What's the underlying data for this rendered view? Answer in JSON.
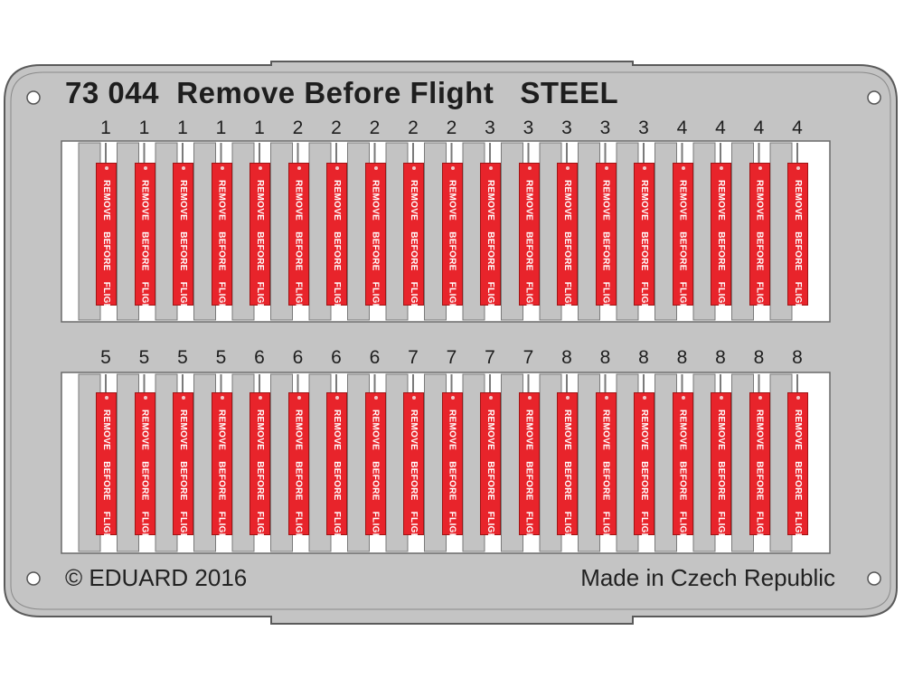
{
  "fret": {
    "title": "73 044  Remove Before Flight   STEEL",
    "copyright": "© EDUARD 2016",
    "origin": "Made in Czech Republic"
  },
  "tag_text": "REMOVE BEFORE FLIGHT",
  "top_row_numbers": [
    "1",
    "1",
    "1",
    "1",
    "1",
    "2",
    "2",
    "2",
    "2",
    "2",
    "3",
    "3",
    "3",
    "3",
    "3",
    "4",
    "4",
    "4",
    "4"
  ],
  "bottom_row_numbers": [
    "5",
    "5",
    "5",
    "5",
    "6",
    "6",
    "6",
    "6",
    "7",
    "7",
    "7",
    "7",
    "8",
    "8",
    "8",
    "8",
    "8",
    "8",
    "8"
  ],
  "colors": {
    "metal": "#c3c3c3",
    "tag_red": "#e8242b"
  }
}
